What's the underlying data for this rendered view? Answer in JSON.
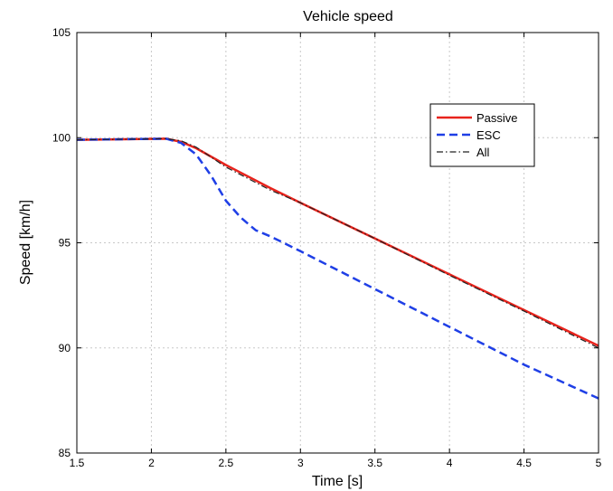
{
  "chart_data": {
    "type": "line",
    "title": "Vehicle speed",
    "xlabel": "Time [s]",
    "ylabel": "Speed [km/h]",
    "xlim": [
      1.5,
      5
    ],
    "ylim": [
      85,
      105
    ],
    "xticks": [
      1.5,
      2,
      2.5,
      3,
      3.5,
      4,
      4.5,
      5
    ],
    "yticks": [
      85,
      90,
      95,
      100,
      105
    ],
    "xtick_labels": [
      "1.5",
      "2",
      "2.5",
      "3",
      "3.5",
      "4",
      "4.5",
      "5"
    ],
    "ytick_labels": [
      "85",
      "90",
      "95",
      "100",
      "105"
    ],
    "grid": true,
    "legend_position": "top-right",
    "series": [
      {
        "name": "Passive",
        "color": "#e8231c",
        "style": "solid",
        "x": [
          1.5,
          2.1,
          2.2,
          2.3,
          2.5,
          2.8,
          3.0,
          3.5,
          4.0,
          4.5,
          5.0
        ],
        "y": [
          99.9,
          99.95,
          99.8,
          99.5,
          98.7,
          97.6,
          96.9,
          95.2,
          93.5,
          91.8,
          90.1
        ]
      },
      {
        "name": "ESC",
        "color": "#1f3fe6",
        "style": "dashed",
        "x": [
          1.5,
          2.1,
          2.2,
          2.3,
          2.4,
          2.5,
          2.6,
          2.7,
          2.8,
          3.0,
          3.5,
          4.0,
          4.5,
          5.0
        ],
        "y": [
          99.9,
          99.95,
          99.75,
          99.2,
          98.2,
          97.0,
          96.2,
          95.6,
          95.3,
          94.6,
          92.8,
          91.0,
          89.2,
          87.6
        ]
      },
      {
        "name": "All",
        "color": "#222222",
        "style": "dashdot",
        "x": [
          1.5,
          2.1,
          2.2,
          2.3,
          2.5,
          2.8,
          3.0,
          3.5,
          4.0,
          4.5,
          5.0
        ],
        "y": [
          99.9,
          99.95,
          99.85,
          99.55,
          98.6,
          97.5,
          96.9,
          95.2,
          93.45,
          91.75,
          90.0
        ]
      }
    ]
  }
}
